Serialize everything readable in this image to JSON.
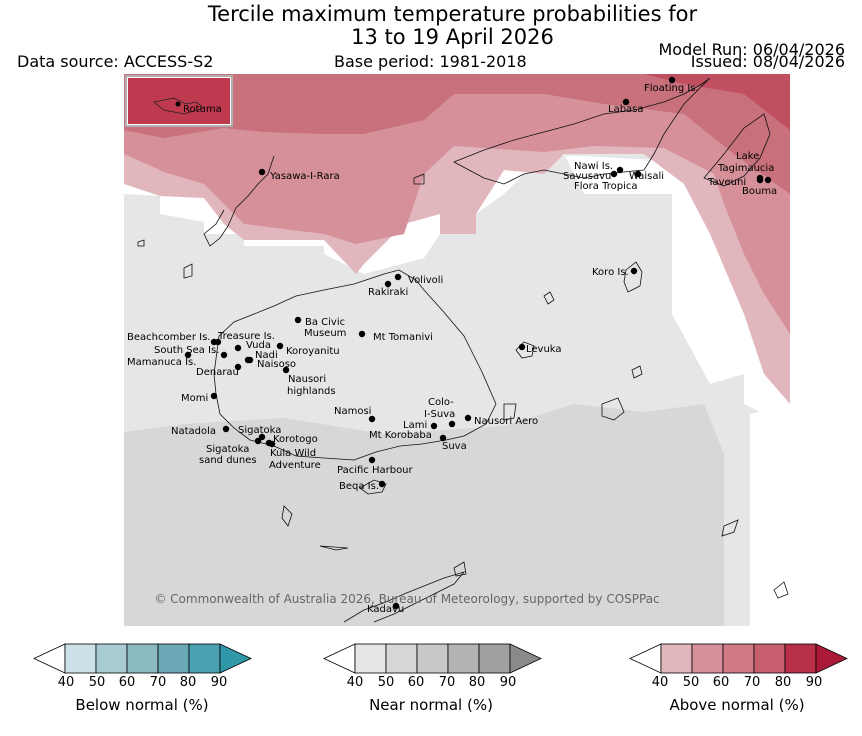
{
  "header": {
    "title_line1": "Tercile maximum temperature probabilities for",
    "title_line2": "13 to 19 April 2026",
    "data_source": "Data source: ACCESS-S2",
    "base_period": "Base period: 1981-2018",
    "model_run": "Model Run: 06/04/2026",
    "issued": "Issued: 08/04/2026"
  },
  "map": {
    "copyright": "© Commonwealth of Australia 2026, Bureau of Meteorology, supported by COSPPac",
    "inset_label": "Rotuma",
    "places": [
      "Floating Is.",
      "Labasa",
      "Yasawa-I-Rara",
      "Nawi Is.",
      "Savusavu",
      "Waisali",
      "Flora Tropica",
      "Lake",
      "Tagimaucia",
      "Taveuni",
      "Bouma",
      "Koro Is.",
      "Volivoli",
      "Rakiraki",
      "Ba Civic",
      "Museum",
      "Mt Tomanivi",
      "Beachcomber Is.",
      "Treasure Is.",
      "South Sea Is.",
      "Vuda",
      "Koroyanitu",
      "Nadi",
      "Mamanuca Is.",
      "Naisoso",
      "Denarau",
      "Nausori",
      "highlands",
      "Levuka",
      "Momi",
      "Colo-",
      "I-Suva",
      "Namosi",
      "Lami",
      "Nausori Aero",
      "Natadola",
      "Sigatoka",
      "Mt Korobaba",
      "Korotogo",
      "Suva",
      "Sigatoka",
      "sand dunes",
      "Kula Wild",
      "Adventure",
      "Pacific Harbour",
      "Beqa Is.",
      "Kadavu"
    ]
  },
  "legends": {
    "below": {
      "title": "Below normal (%)",
      "ticks": [
        "40",
        "50",
        "60",
        "70",
        "80",
        "90"
      ],
      "colors": [
        "#ffffff",
        "#cde2e8",
        "#a9cbd2",
        "#8bbac3",
        "#6aa8b5",
        "#49a0b0",
        "#2f97a8"
      ]
    },
    "near": {
      "title": "Near normal (%)",
      "ticks": [
        "40",
        "50",
        "60",
        "70",
        "80",
        "90"
      ],
      "colors": [
        "#ffffff",
        "#e6e6e6",
        "#d7d7d7",
        "#c8c8c8",
        "#b4b4b4",
        "#a0a0a0",
        "#8a8a8a"
      ]
    },
    "above": {
      "title": "Above normal (%)",
      "ticks": [
        "40",
        "50",
        "60",
        "70",
        "80",
        "90"
      ],
      "colors": [
        "#ffffff",
        "#e1b7bd",
        "#d69099",
        "#cf7a85",
        "#c75f6e",
        "#b93149",
        "#ac1a3a"
      ]
    }
  }
}
